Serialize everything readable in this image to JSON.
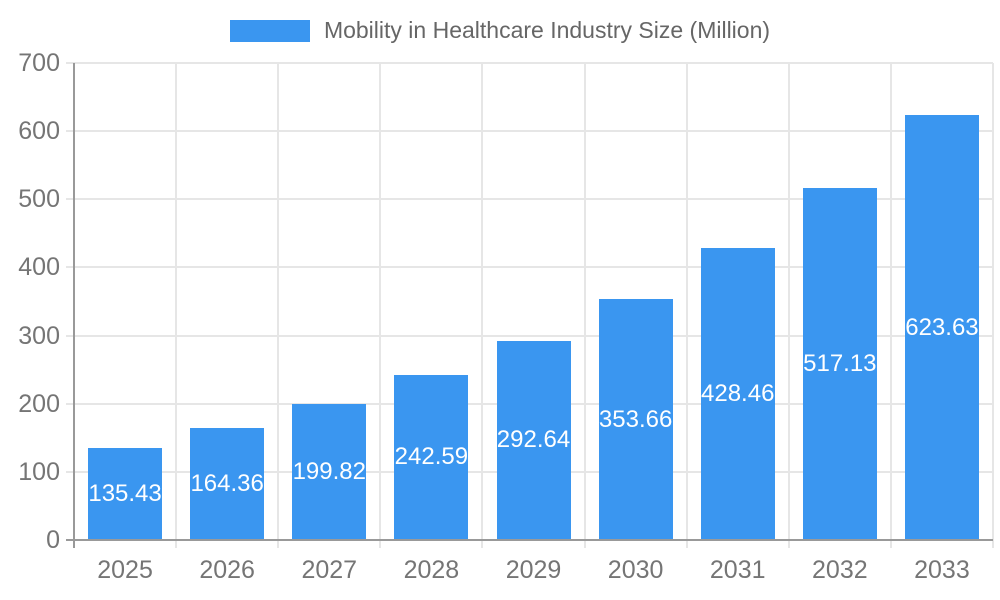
{
  "chart_data": {
    "type": "bar",
    "categories": [
      "2025",
      "2026",
      "2027",
      "2028",
      "2029",
      "2030",
      "2031",
      "2032",
      "2033"
    ],
    "series": [
      {
        "name": "Mobility in Healthcare Industry Size (Million)",
        "values": [
          135.43,
          164.36,
          199.82,
          242.59,
          292.64,
          353.66,
          428.46,
          517.13,
          623.63
        ]
      }
    ],
    "title": "Mobility in Healthcare Industry Size (Million)",
    "xlabel": "",
    "ylabel": "",
    "ylim": [
      0,
      700
    ],
    "ytick_step": 100,
    "ytick_labels": [
      "0",
      "100",
      "200",
      "300",
      "400",
      "500",
      "600",
      "700"
    ],
    "grid": true,
    "legend_position": "top",
    "value_label_position": "inside-center",
    "value_label_decimals": 2,
    "colors": {
      "bar": "#3a96f0",
      "value_label": "#ffffff",
      "tick_text": "#757575",
      "legend_text": "#666666",
      "grid": "#e6e6e6",
      "axis": "#999999"
    }
  }
}
